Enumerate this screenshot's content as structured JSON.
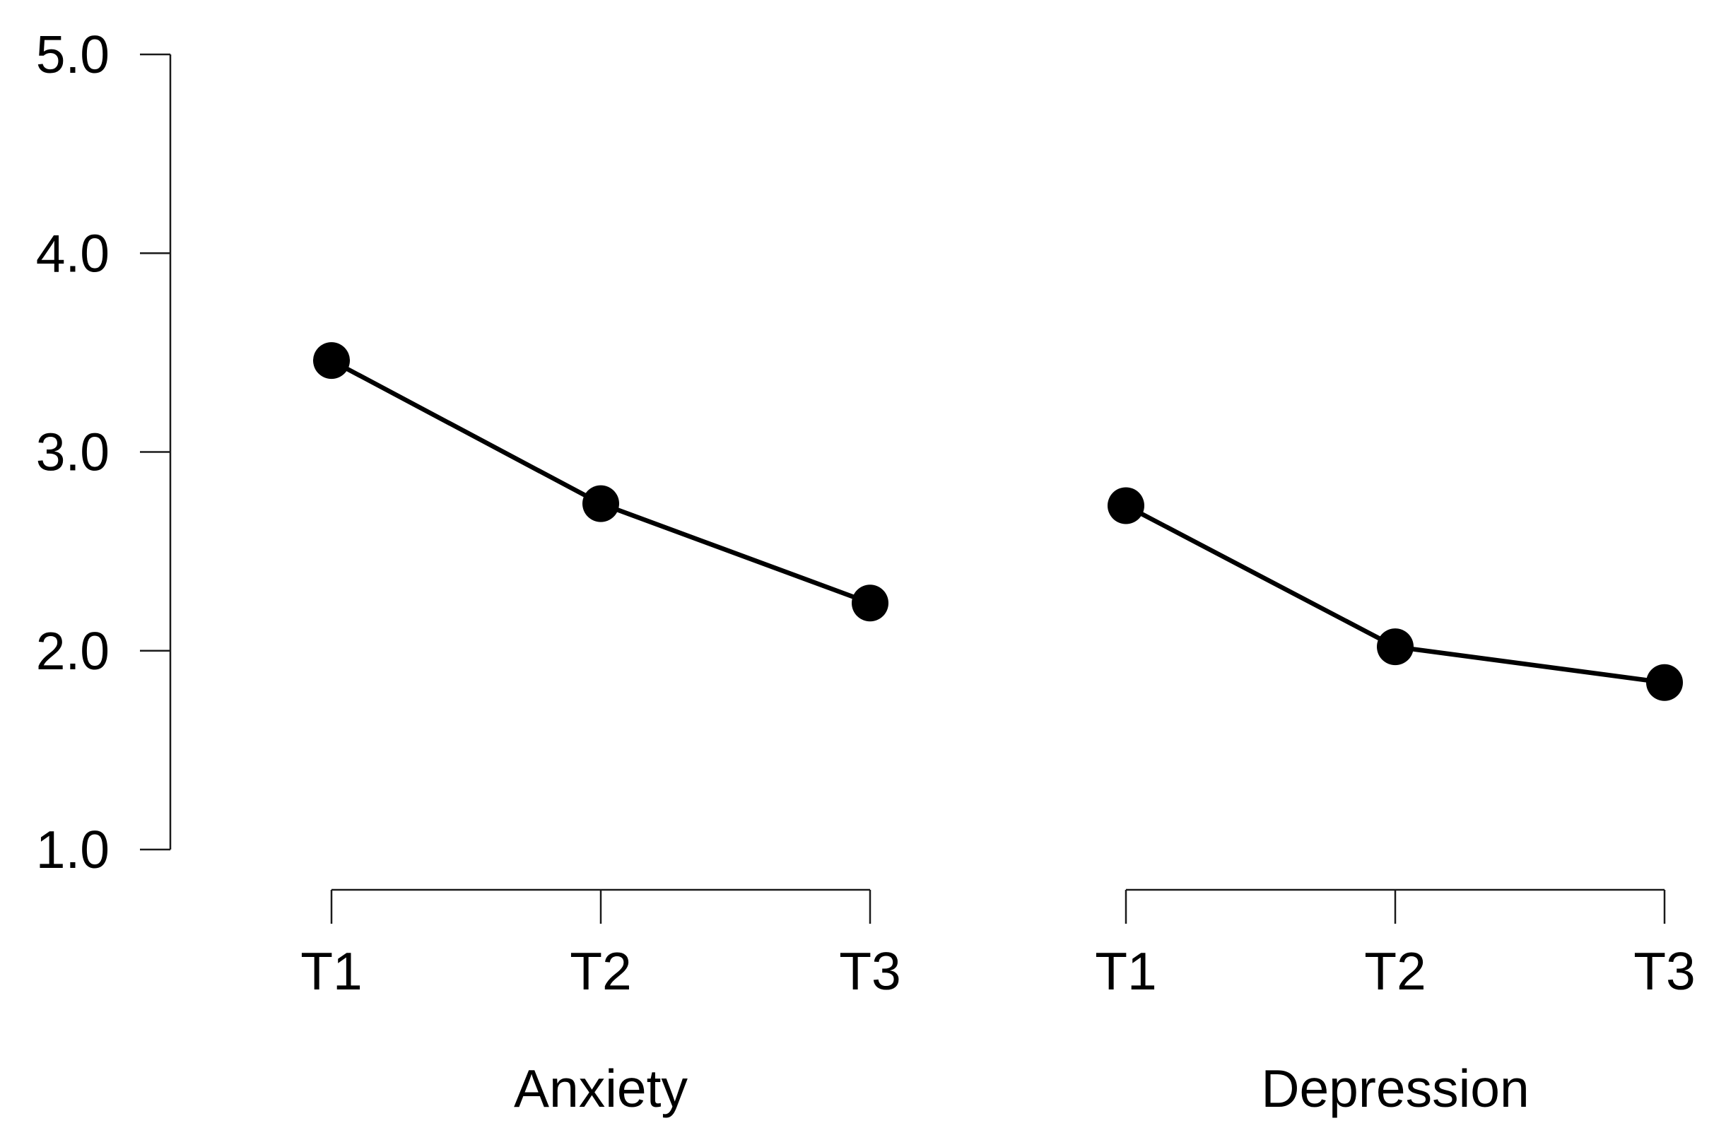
{
  "chart_data": {
    "type": "line",
    "title": "",
    "xlabel": "",
    "ylabel": "",
    "ylim": [
      1.0,
      5.0
    ],
    "yticks": [
      "1.0",
      "2.0",
      "3.0",
      "4.0",
      "5.0"
    ],
    "grid": false,
    "legend": "none",
    "groups": [
      {
        "name": "Anxiety",
        "categories": [
          "T1",
          "T2",
          "T3"
        ],
        "values": [
          3.46,
          2.74,
          2.24
        ]
      },
      {
        "name": "Depression",
        "categories": [
          "T1",
          "T2",
          "T3"
        ],
        "values": [
          2.73,
          2.02,
          1.84
        ]
      }
    ]
  }
}
